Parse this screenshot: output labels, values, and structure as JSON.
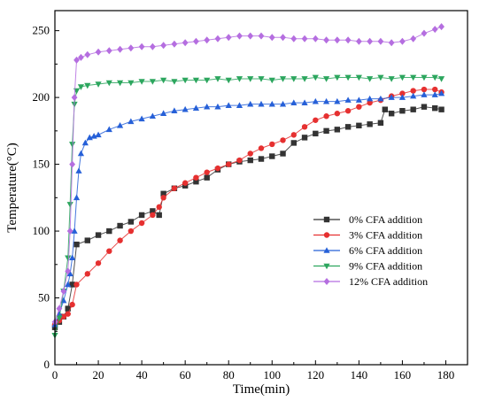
{
  "chart_data": {
    "type": "scatter",
    "xlabel": "Time(min)",
    "ylabel": "Temperature(°C)",
    "xlim": [
      0,
      190
    ],
    "ylim": [
      0,
      265
    ],
    "xticks": [
      0,
      20,
      40,
      60,
      80,
      100,
      120,
      140,
      160,
      180
    ],
    "yticks": [
      0,
      50,
      100,
      150,
      200,
      250
    ],
    "legend_position": "center-right",
    "grid": false,
    "series": [
      {
        "name": "0% CFA addition",
        "color": "#333333",
        "marker": "square",
        "x": [
          0,
          2,
          4,
          6,
          8,
          10,
          15,
          20,
          25,
          30,
          35,
          40,
          45,
          48,
          50,
          55,
          60,
          65,
          70,
          75,
          80,
          85,
          90,
          95,
          100,
          105,
          110,
          115,
          120,
          125,
          130,
          135,
          140,
          145,
          150,
          152,
          155,
          160,
          165,
          170,
          175,
          178
        ],
        "y": [
          28,
          32,
          36,
          42,
          60,
          90,
          93,
          97,
          100,
          104,
          107,
          112,
          115,
          112,
          128,
          132,
          134,
          137,
          140,
          146,
          150,
          152,
          153,
          154,
          156,
          158,
          166,
          170,
          173,
          175,
          176,
          178,
          179,
          180,
          181,
          191,
          188,
          190,
          191,
          193,
          192,
          191
        ]
      },
      {
        "name": "3% CFA addition",
        "color": "#e63030",
        "marker": "circle",
        "x": [
          0,
          2,
          4,
          6,
          8,
          10,
          15,
          20,
          25,
          30,
          35,
          40,
          45,
          48,
          50,
          55,
          60,
          65,
          70,
          75,
          80,
          85,
          90,
          95,
          100,
          105,
          110,
          115,
          120,
          125,
          130,
          135,
          140,
          145,
          150,
          155,
          160,
          165,
          170,
          175,
          178
        ],
        "y": [
          30,
          33,
          36,
          38,
          45,
          60,
          68,
          76,
          85,
          93,
          100,
          106,
          112,
          118,
          125,
          132,
          136,
          140,
          144,
          147,
          150,
          153,
          158,
          162,
          165,
          168,
          172,
          178,
          183,
          186,
          188,
          190,
          193,
          196,
          198,
          201,
          203,
          205,
          206,
          206,
          204
        ]
      },
      {
        "name": "6% CFA addition",
        "color": "#2660d8",
        "marker": "triangle-up",
        "x": [
          0,
          2,
          4,
          6,
          7,
          8,
          9,
          10,
          11,
          12,
          14,
          16,
          18,
          20,
          25,
          30,
          35,
          40,
          45,
          50,
          55,
          60,
          65,
          70,
          75,
          80,
          85,
          90,
          95,
          100,
          105,
          110,
          115,
          120,
          125,
          130,
          135,
          140,
          145,
          150,
          155,
          160,
          165,
          170,
          175,
          178
        ],
        "y": [
          30,
          38,
          48,
          60,
          68,
          80,
          100,
          125,
          145,
          158,
          166,
          170,
          171,
          172,
          176,
          179,
          182,
          184,
          186,
          188,
          190,
          191,
          192,
          193,
          193,
          194,
          194,
          195,
          195,
          195,
          195,
          196,
          196,
          197,
          197,
          197,
          198,
          198,
          199,
          199,
          200,
          200,
          201,
          202,
          202,
          203
        ]
      },
      {
        "name": "9% CFA addition",
        "color": "#2ca65e",
        "marker": "triangle-down",
        "x": [
          0,
          2,
          4,
          6,
          7,
          8,
          9,
          10,
          12,
          15,
          20,
          25,
          30,
          35,
          40,
          45,
          50,
          55,
          60,
          65,
          70,
          75,
          80,
          85,
          90,
          95,
          100,
          105,
          110,
          115,
          120,
          125,
          130,
          135,
          140,
          145,
          150,
          155,
          160,
          165,
          170,
          175,
          178
        ],
        "y": [
          22,
          35,
          55,
          80,
          120,
          165,
          195,
          205,
          208,
          209,
          210,
          211,
          211,
          211,
          212,
          212,
          213,
          212,
          213,
          213,
          213,
          214,
          213,
          214,
          214,
          214,
          213,
          214,
          214,
          214,
          215,
          214,
          215,
          215,
          215,
          214,
          215,
          214,
          215,
          215,
          215,
          215,
          214
        ]
      },
      {
        "name": "12% CFA addition",
        "color": "#b56ee0",
        "marker": "diamond",
        "x": [
          0,
          2,
          4,
          6,
          7,
          8,
          9,
          10,
          12,
          15,
          20,
          25,
          30,
          35,
          40,
          45,
          50,
          55,
          60,
          65,
          70,
          75,
          80,
          85,
          90,
          95,
          100,
          105,
          110,
          115,
          120,
          125,
          130,
          135,
          140,
          145,
          150,
          155,
          160,
          165,
          170,
          175,
          178
        ],
        "y": [
          32,
          42,
          55,
          70,
          100,
          150,
          200,
          228,
          230,
          232,
          234,
          235,
          236,
          237,
          238,
          238,
          239,
          240,
          241,
          242,
          243,
          244,
          245,
          246,
          246,
          246,
          245,
          245,
          244,
          244,
          244,
          243,
          243,
          243,
          242,
          242,
          242,
          241,
          242,
          244,
          248,
          251,
          253
        ]
      }
    ]
  }
}
